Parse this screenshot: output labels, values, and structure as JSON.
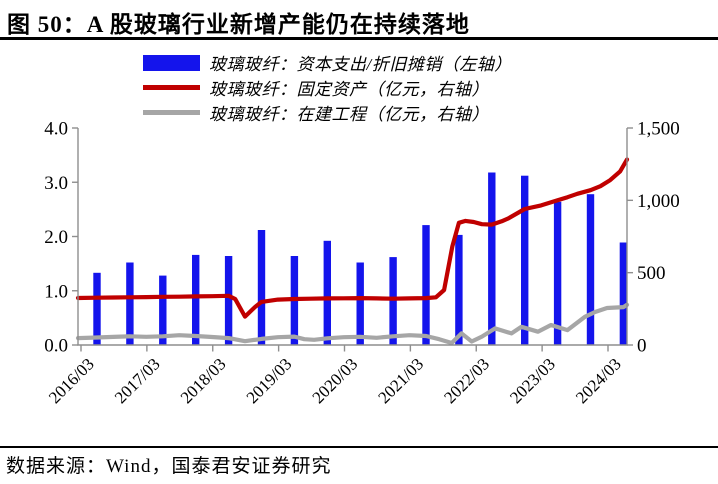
{
  "header": {
    "title": "图 50：A 股玻璃行业新增产能仍在持续落地"
  },
  "legend": {
    "items": [
      {
        "label": "玻璃玻纤：资本支出/折旧摊销（左轴）",
        "color": "#1414EC",
        "type": "bar"
      },
      {
        "label": "玻璃玻纤：固定资产（亿元，右轴）",
        "color": "#C00000",
        "type": "line"
      },
      {
        "label": "玻璃玻纤：在建工程（亿元，右轴）",
        "color": "#A6A6A6",
        "type": "line"
      }
    ]
  },
  "footer": {
    "source": "数据来源：Wind，国泰君安证券研究"
  },
  "chart_data": {
    "type": "combo",
    "title": "A股玻璃行业新增产能仍在持续落地",
    "grid": false,
    "legend_position": "top",
    "axis_color": "#8E8E8E",
    "categories": [
      "2016/03",
      "2016/09",
      "2017/03",
      "2017/09",
      "2018/03",
      "2018/09",
      "2019/03",
      "2019/09",
      "2020/03",
      "2020/09",
      "2021/03",
      "2021/09",
      "2022/03",
      "2022/09",
      "2023/03",
      "2023/09",
      "2024/03"
    ],
    "x_tick_labels": [
      "2016/03",
      "2017/03",
      "2018/03",
      "2019/03",
      "2020/03",
      "2021/03",
      "2022/03",
      "2023/03",
      "2024/03"
    ],
    "left_axis": {
      "min": 0,
      "max": 4,
      "ticks": [
        "0.0",
        "1.0",
        "2.0",
        "3.0",
        "4.0"
      ]
    },
    "right_axis": {
      "min": 0,
      "max": 1500,
      "ticks": [
        "0",
        "500",
        "1,000",
        "1,500"
      ]
    },
    "series": [
      {
        "name": "玻璃玻纤：资本支出/折旧摊销（左轴）",
        "type": "bar",
        "axis": "left",
        "color": "#1414EC",
        "values": [
          1.33,
          1.52,
          1.28,
          1.66,
          1.64,
          2.12,
          1.64,
          1.92,
          1.52,
          1.62,
          2.21,
          2.03,
          3.18,
          3.12,
          2.64,
          2.78,
          1.89
        ]
      },
      {
        "name": "玻璃玻纤：固定资产（亿元，右轴）",
        "type": "line",
        "axis": "right",
        "color": "#C00000",
        "points": [
          [
            -0.577,
            325
          ],
          [
            0,
            327
          ],
          [
            0.5,
            328
          ],
          [
            1,
            330
          ],
          [
            1.5,
            331
          ],
          [
            2,
            333
          ],
          [
            2.5,
            334
          ],
          [
            3,
            336
          ],
          [
            3.5,
            337
          ],
          [
            4,
            340
          ],
          [
            4.2,
            318
          ],
          [
            4.5,
            196
          ],
          [
            4.8,
            262
          ],
          [
            5,
            298
          ],
          [
            5.5,
            314
          ],
          [
            6,
            318
          ],
          [
            6.5,
            320
          ],
          [
            7,
            322
          ],
          [
            7.5,
            323
          ],
          [
            8,
            324
          ],
          [
            8.5,
            322
          ],
          [
            9,
            320
          ],
          [
            9.5,
            322
          ],
          [
            10,
            324
          ],
          [
            10.3,
            330
          ],
          [
            10.55,
            380
          ],
          [
            10.8,
            680
          ],
          [
            11,
            845
          ],
          [
            11.2,
            858
          ],
          [
            11.45,
            850
          ],
          [
            11.7,
            835
          ],
          [
            12,
            832
          ],
          [
            12.3,
            855
          ],
          [
            12.5,
            875
          ],
          [
            13,
            940
          ],
          [
            13.5,
            965
          ],
          [
            14,
            1000
          ],
          [
            14.3,
            1022
          ],
          [
            14.6,
            1045
          ],
          [
            15,
            1070
          ],
          [
            15.3,
            1098
          ],
          [
            15.6,
            1140
          ],
          [
            15.9,
            1200
          ],
          [
            16.11,
            1282
          ]
        ]
      },
      {
        "name": "玻璃玻纤：在建工程（亿元，右轴）",
        "type": "line",
        "axis": "right",
        "color": "#A6A6A6",
        "points": [
          [
            -0.577,
            48
          ],
          [
            0,
            52
          ],
          [
            0.5,
            56
          ],
          [
            1,
            60
          ],
          [
            1.5,
            57
          ],
          [
            2,
            60
          ],
          [
            2.5,
            68
          ],
          [
            3,
            62
          ],
          [
            3.5,
            55
          ],
          [
            4,
            48
          ],
          [
            4.5,
            26
          ],
          [
            5,
            42
          ],
          [
            5.5,
            54
          ],
          [
            6,
            58
          ],
          [
            6.3,
            40
          ],
          [
            6.6,
            36
          ],
          [
            7,
            46
          ],
          [
            7.5,
            54
          ],
          [
            8,
            57
          ],
          [
            8.5,
            50
          ],
          [
            9,
            60
          ],
          [
            9.5,
            68
          ],
          [
            10,
            62
          ],
          [
            10.4,
            40
          ],
          [
            10.78,
            14
          ],
          [
            11.08,
            80
          ],
          [
            11.39,
            24
          ],
          [
            11.7,
            58
          ],
          [
            12.1,
            115
          ],
          [
            12.6,
            80
          ],
          [
            12.9,
            126
          ],
          [
            13.4,
            92
          ],
          [
            13.8,
            138
          ],
          [
            14.3,
            103
          ],
          [
            14.83,
            195
          ],
          [
            15.14,
            228
          ],
          [
            15.5,
            256
          ],
          [
            16,
            262
          ],
          [
            16.11,
            278
          ]
        ]
      }
    ]
  }
}
